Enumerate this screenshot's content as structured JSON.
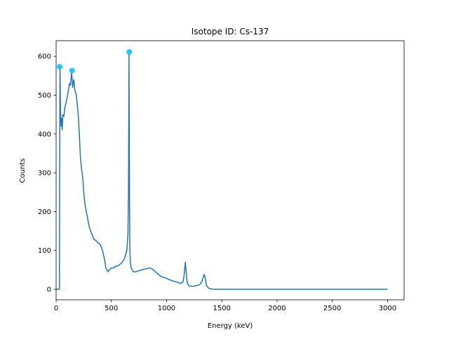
{
  "chart_data": {
    "type": "line",
    "title": "Isotope ID: Cs-137",
    "xlabel": "Energy (keV)",
    "ylabel": "Counts",
    "xlim": [
      0,
      3150
    ],
    "ylim": [
      -27,
      640
    ],
    "xticks": [
      0,
      500,
      1000,
      1500,
      2000,
      2500,
      3000
    ],
    "yticks": [
      0,
      100,
      200,
      300,
      400,
      500,
      600
    ],
    "grid": false,
    "colors": {
      "line": "#1f77b4",
      "peak": "#1ec8ff"
    },
    "series": [
      {
        "values_x": [
          0,
          25,
          30,
          32,
          35,
          40,
          45,
          50,
          55,
          60,
          70,
          80,
          90,
          100,
          110,
          120,
          130,
          140,
          150,
          160,
          170,
          180,
          190,
          200,
          210,
          220,
          230,
          240,
          250,
          260,
          280,
          300,
          320,
          340,
          360,
          380,
          400,
          420,
          440,
          450,
          460,
          470,
          480,
          500,
          520,
          540,
          560,
          580,
          600,
          620,
          640,
          650,
          655,
          660,
          662,
          665,
          668,
          672,
          680,
          700,
          720,
          750,
          800,
          850,
          880,
          900,
          920,
          950,
          980,
          1000,
          1050,
          1100,
          1130,
          1150,
          1160,
          1170,
          1180,
          1185,
          1190,
          1200,
          1210,
          1220,
          1250,
          1280,
          1300,
          1320,
          1330,
          1340,
          1350,
          1360,
          1380,
          1400,
          1420,
          1450,
          1500,
          1600,
          1800,
          2000,
          2200,
          2400,
          2600,
          2800,
          3000
        ],
        "values_y": [
          0,
          0,
          0,
          300,
          575,
          450,
          420,
          440,
          410,
          450,
          445,
          470,
          480,
          495,
          510,
          530,
          525,
          560,
          520,
          540,
          510,
          505,
          480,
          450,
          400,
          340,
          310,
          290,
          250,
          220,
          190,
          160,
          145,
          130,
          125,
          120,
          115,
          100,
          75,
          55,
          50,
          45,
          50,
          55,
          55,
          60,
          60,
          65,
          70,
          80,
          100,
          140,
          250,
          610,
          400,
          200,
          100,
          70,
          55,
          45,
          45,
          48,
          52,
          55,
          50,
          45,
          40,
          33,
          30,
          28,
          22,
          18,
          15,
          20,
          40,
          70,
          35,
          20,
          15,
          10,
          8,
          8,
          8,
          10,
          12,
          20,
          30,
          38,
          30,
          10,
          3,
          1,
          0,
          0,
          0,
          0,
          0,
          0,
          0,
          0,
          0,
          0,
          0
        ]
      }
    ],
    "peaks": [
      {
        "x": 32,
        "y": 573
      },
      {
        "x": 145,
        "y": 563
      },
      {
        "x": 662,
        "y": 611
      }
    ]
  }
}
